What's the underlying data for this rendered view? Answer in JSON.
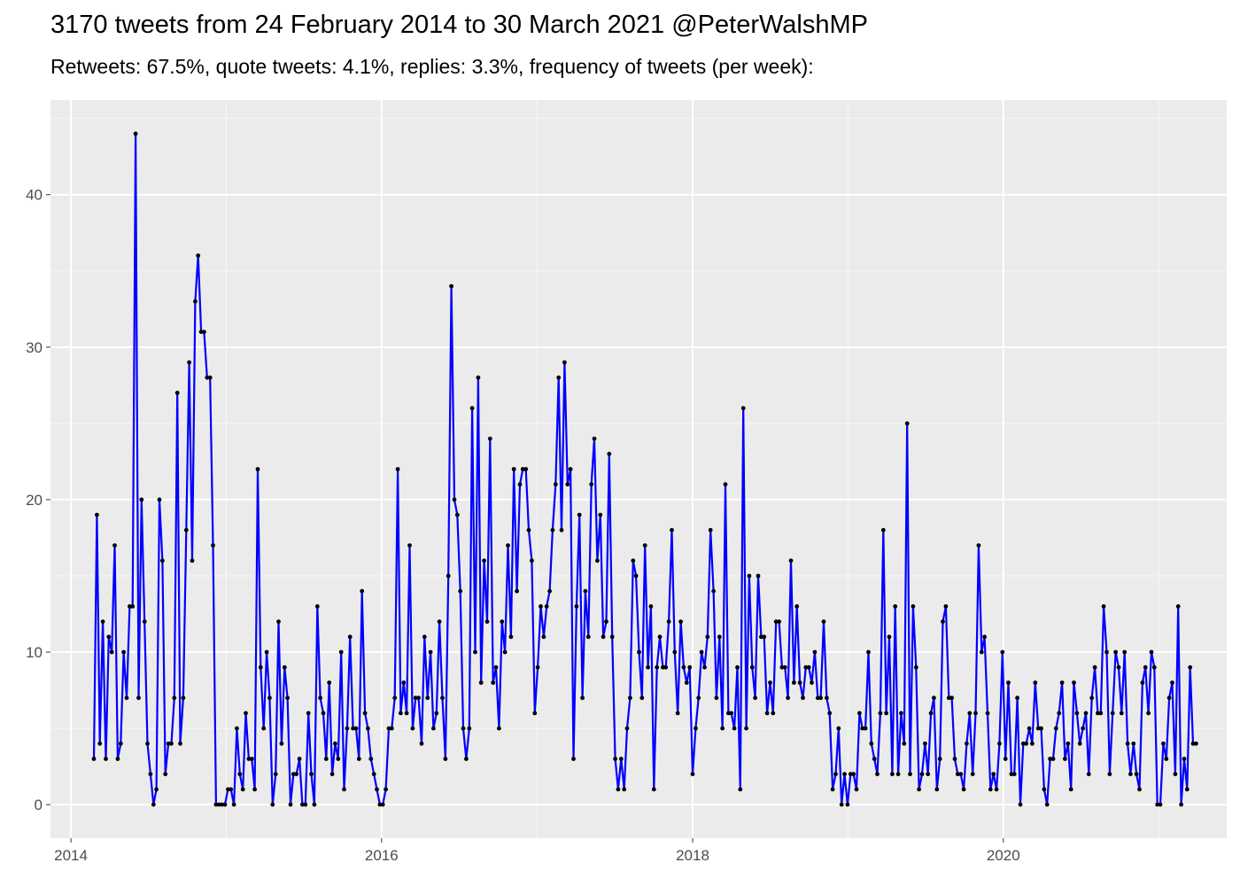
{
  "title": "3170 tweets from 24 February 2014 to 30 March 2021 @PeterWalshMP",
  "subtitle": "Retweets: 67.5%, quote tweets: 4.1%, replies: 3.3%, frequency of tweets (per week):",
  "chart_data": {
    "type": "line",
    "title": "3170 tweets from 24 February 2014 to 30 March 2021 @PeterWalshMP",
    "subtitle": "Retweets: 67.5%, quote tweets: 4.1%, replies: 3.3%, frequency of tweets (per week):",
    "xlabel": "",
    "ylabel": "",
    "x_range": [
      "2013-11-14",
      "2021-06-09"
    ],
    "ylim": [
      -2.2,
      46.2
    ],
    "x_ticks": [
      {
        "date": "2014-01-01",
        "label": "2014"
      },
      {
        "date": "2016-01-01",
        "label": "2016"
      },
      {
        "date": "2018-01-01",
        "label": "2018"
      },
      {
        "date": "2020-01-01",
        "label": "2020"
      }
    ],
    "y_ticks": [
      0,
      10,
      20,
      30,
      40
    ],
    "grid": true,
    "line_color": "#0000ff",
    "point_color": "#000000",
    "panel_background": "#ebebeb",
    "series": [
      {
        "x": [
          "2014-02-24",
          "2014-03-03",
          "2014-03-10",
          "2014-03-17",
          "2014-03-24",
          "2014-03-31",
          "2014-04-07",
          "2014-04-14",
          "2014-04-21",
          "2014-04-28",
          "2014-05-05",
          "2014-05-12",
          "2014-05-19",
          "2014-05-26",
          "2014-06-02",
          "2014-06-09",
          "2014-06-16",
          "2014-06-23",
          "2014-06-30",
          "2014-07-07",
          "2014-07-14",
          "2014-07-21",
          "2014-07-28",
          "2014-08-04",
          "2014-08-11",
          "2014-08-18",
          "2014-08-25",
          "2014-09-01",
          "2014-09-08",
          "2014-09-15",
          "2014-09-22",
          "2014-09-29",
          "2014-10-06",
          "2014-10-13",
          "2014-10-20",
          "2014-10-27",
          "2014-11-03",
          "2014-11-10",
          "2014-11-17",
          "2014-11-24",
          "2014-12-01",
          "2014-12-08",
          "2014-12-15",
          "2014-12-22",
          "2014-12-29",
          "2015-01-05",
          "2015-01-12",
          "2015-01-19",
          "2015-01-26",
          "2015-02-02",
          "2015-02-09",
          "2015-02-16",
          "2015-02-23",
          "2015-03-02",
          "2015-03-09",
          "2015-03-16",
          "2015-03-23",
          "2015-03-30",
          "2015-04-06",
          "2015-04-13",
          "2015-04-20",
          "2015-04-27",
          "2015-05-04",
          "2015-05-11",
          "2015-05-18",
          "2015-05-25",
          "2015-06-01",
          "2015-06-08",
          "2015-06-15",
          "2015-06-22",
          "2015-06-29",
          "2015-07-06",
          "2015-07-13",
          "2015-07-20",
          "2015-07-27",
          "2015-08-03",
          "2015-08-10",
          "2015-08-17",
          "2015-08-24",
          "2015-08-31",
          "2015-09-07",
          "2015-09-14",
          "2015-09-21",
          "2015-09-28",
          "2015-10-05",
          "2015-10-12",
          "2015-10-19",
          "2015-10-26",
          "2015-11-02",
          "2015-11-09",
          "2015-11-16",
          "2015-11-23",
          "2015-11-30",
          "2015-12-07",
          "2015-12-14",
          "2015-12-21",
          "2015-12-28",
          "2016-01-04",
          "2016-01-11",
          "2016-01-18",
          "2016-01-25",
          "2016-02-01",
          "2016-02-08",
          "2016-02-15",
          "2016-02-22",
          "2016-02-29",
          "2016-03-07",
          "2016-03-14",
          "2016-03-21",
          "2016-03-28",
          "2016-04-04",
          "2016-04-11",
          "2016-04-18",
          "2016-04-25",
          "2016-05-02",
          "2016-05-09",
          "2016-05-16",
          "2016-05-23",
          "2016-05-30",
          "2016-06-06",
          "2016-06-13",
          "2016-06-20",
          "2016-06-27",
          "2016-07-04",
          "2016-07-11",
          "2016-07-18",
          "2016-07-25",
          "2016-08-01",
          "2016-08-08",
          "2016-08-15",
          "2016-08-22",
          "2016-08-29",
          "2016-09-05",
          "2016-09-12",
          "2016-09-19",
          "2016-09-26",
          "2016-10-03",
          "2016-10-10",
          "2016-10-17",
          "2016-10-24",
          "2016-10-31",
          "2016-11-07",
          "2016-11-14",
          "2016-11-21",
          "2016-11-28",
          "2016-12-05",
          "2016-12-12",
          "2016-12-19",
          "2016-12-26",
          "2017-01-02",
          "2017-01-09",
          "2017-01-16",
          "2017-01-23",
          "2017-01-30",
          "2017-02-06",
          "2017-02-13",
          "2017-02-20",
          "2017-02-27",
          "2017-03-06",
          "2017-03-13",
          "2017-03-20",
          "2017-03-27",
          "2017-04-03",
          "2017-04-10",
          "2017-04-17",
          "2017-04-24",
          "2017-05-01",
          "2017-05-08",
          "2017-05-15",
          "2017-05-22",
          "2017-05-29",
          "2017-06-05",
          "2017-06-12",
          "2017-06-19",
          "2017-06-26",
          "2017-07-03",
          "2017-07-10",
          "2017-07-17",
          "2017-07-24",
          "2017-07-31",
          "2017-08-07",
          "2017-08-14",
          "2017-08-21",
          "2017-08-28",
          "2017-09-04",
          "2017-09-11",
          "2017-09-18",
          "2017-09-25",
          "2017-10-02",
          "2017-10-09",
          "2017-10-16",
          "2017-10-23",
          "2017-10-30",
          "2017-11-06",
          "2017-11-13",
          "2017-11-20",
          "2017-11-27",
          "2017-12-04",
          "2017-12-11",
          "2017-12-18",
          "2017-12-25",
          "2018-01-01",
          "2018-01-08",
          "2018-01-15",
          "2018-01-22",
          "2018-01-29",
          "2018-02-05",
          "2018-02-12",
          "2018-02-19",
          "2018-02-26",
          "2018-03-05",
          "2018-03-12",
          "2018-03-19",
          "2018-03-26",
          "2018-04-02",
          "2018-04-09",
          "2018-04-16",
          "2018-04-23",
          "2018-04-30",
          "2018-05-07",
          "2018-05-14",
          "2018-05-21",
          "2018-05-28",
          "2018-06-04",
          "2018-06-11",
          "2018-06-18",
          "2018-06-25",
          "2018-07-02",
          "2018-07-09",
          "2018-07-16",
          "2018-07-23",
          "2018-07-30",
          "2018-08-06",
          "2018-08-13",
          "2018-08-20",
          "2018-08-27",
          "2018-09-03",
          "2018-09-10",
          "2018-09-17",
          "2018-09-24",
          "2018-10-01",
          "2018-10-08",
          "2018-10-15",
          "2018-10-22",
          "2018-10-29",
          "2018-11-05",
          "2018-11-12",
          "2018-11-19",
          "2018-11-26",
          "2018-12-03",
          "2018-12-10",
          "2018-12-17",
          "2018-12-24",
          "2018-12-31",
          "2019-01-07",
          "2019-01-14",
          "2019-01-21",
          "2019-01-28",
          "2019-02-04",
          "2019-02-11",
          "2019-02-18",
          "2019-02-25",
          "2019-03-04",
          "2019-03-11",
          "2019-03-18",
          "2019-03-25",
          "2019-04-01",
          "2019-04-08",
          "2019-04-15",
          "2019-04-22",
          "2019-04-29",
          "2019-05-06",
          "2019-05-13",
          "2019-05-20",
          "2019-05-27",
          "2019-06-03",
          "2019-06-10",
          "2019-06-17",
          "2019-06-24",
          "2019-07-01",
          "2019-07-08",
          "2019-07-15",
          "2019-07-22",
          "2019-07-29",
          "2019-08-05",
          "2019-08-12",
          "2019-08-19",
          "2019-08-26",
          "2019-09-02",
          "2019-09-09",
          "2019-09-16",
          "2019-09-23",
          "2019-09-30",
          "2019-10-07",
          "2019-10-14",
          "2019-10-21",
          "2019-10-28",
          "2019-11-04",
          "2019-11-11",
          "2019-11-18",
          "2019-11-25",
          "2019-12-02",
          "2019-12-09",
          "2019-12-16",
          "2019-12-23",
          "2019-12-30",
          "2020-01-06",
          "2020-01-13",
          "2020-01-20",
          "2020-01-27",
          "2020-02-03",
          "2020-02-10",
          "2020-02-17",
          "2020-02-24",
          "2020-03-02",
          "2020-03-09",
          "2020-03-16",
          "2020-03-23",
          "2020-03-30",
          "2020-04-06",
          "2020-04-13",
          "2020-04-20",
          "2020-04-27",
          "2020-05-04",
          "2020-05-11",
          "2020-05-18",
          "2020-05-25",
          "2020-06-01",
          "2020-06-08",
          "2020-06-15",
          "2020-06-22",
          "2020-06-29",
          "2020-07-06",
          "2020-07-13",
          "2020-07-20",
          "2020-07-27",
          "2020-08-03",
          "2020-08-10",
          "2020-08-17",
          "2020-08-24",
          "2020-08-31",
          "2020-09-07",
          "2020-09-14",
          "2020-09-21",
          "2020-09-28",
          "2020-10-05",
          "2020-10-12",
          "2020-10-19",
          "2020-10-26",
          "2020-11-02",
          "2020-11-09",
          "2020-11-16",
          "2020-11-23",
          "2020-11-30",
          "2020-12-07",
          "2020-12-14",
          "2020-12-21",
          "2020-12-28",
          "2021-01-04",
          "2021-01-11",
          "2021-01-18",
          "2021-01-25",
          "2021-02-01",
          "2021-02-08",
          "2021-02-15",
          "2021-02-22",
          "2021-03-01",
          "2021-03-08",
          "2021-03-15",
          "2021-03-22",
          "2021-03-29"
        ],
        "values": [
          3,
          19,
          4,
          12,
          3,
          11,
          10,
          17,
          3,
          4,
          10,
          7,
          13,
          13,
          44,
          7,
          20,
          12,
          4,
          2,
          0,
          1,
          20,
          16,
          2,
          4,
          4,
          7,
          27,
          4,
          7,
          18,
          29,
          16,
          33,
          36,
          31,
          31,
          28,
          28,
          17,
          0,
          0,
          0,
          0,
          1,
          1,
          0,
          5,
          2,
          1,
          6,
          3,
          3,
          1,
          22,
          9,
          5,
          10,
          7,
          0,
          2,
          12,
          4,
          9,
          7,
          0,
          2,
          2,
          3,
          0,
          0,
          6,
          2,
          0,
          13,
          7,
          6,
          3,
          8,
          2,
          4,
          3,
          10,
          1,
          5,
          11,
          5,
          5,
          3,
          14,
          6,
          5,
          3,
          2,
          1,
          0,
          0,
          1,
          5,
          5,
          7,
          22,
          6,
          8,
          6,
          17,
          5,
          7,
          7,
          4,
          11,
          7,
          10,
          5,
          6,
          12,
          7,
          3,
          15,
          34,
          20,
          19,
          14,
          5,
          3,
          5,
          26,
          10,
          28,
          8,
          16,
          12,
          24,
          8,
          9,
          5,
          12,
          10,
          17,
          11,
          22,
          14,
          21,
          22,
          22,
          18,
          16,
          6,
          9,
          13,
          11,
          13,
          14,
          18,
          21,
          28,
          18,
          29,
          21,
          22,
          3,
          13,
          19,
          7,
          14,
          11,
          21,
          24,
          16,
          19,
          11,
          12,
          23,
          11,
          3,
          1,
          3,
          1,
          5,
          7,
          16,
          15,
          10,
          7,
          17,
          9,
          13,
          1,
          9,
          11,
          9,
          9,
          12,
          18,
          10,
          6,
          12,
          9,
          8,
          9,
          2,
          5,
          7,
          10,
          9,
          11,
          18,
          14,
          7,
          11,
          5,
          21,
          6,
          6,
          5,
          9,
          1,
          26,
          5,
          15,
          9,
          7,
          15,
          11,
          11,
          6,
          8,
          6,
          12,
          12,
          9,
          9,
          7,
          16,
          8,
          13,
          8,
          7,
          9,
          9,
          8,
          10,
          7,
          7,
          12,
          7,
          6,
          1,
          2,
          5,
          0,
          2,
          0,
          2,
          2,
          1,
          6,
          5,
          5,
          10,
          4,
          3,
          2,
          6,
          18,
          6,
          11,
          2,
          13,
          2,
          6,
          4,
          25,
          2,
          13,
          9,
          1,
          2,
          4,
          2,
          6,
          7,
          1,
          3,
          12,
          13,
          7,
          7,
          3,
          2,
          2,
          1,
          4,
          6,
          2,
          6,
          17,
          10,
          11,
          6,
          1,
          2,
          1,
          4,
          10,
          3,
          8,
          2,
          2,
          7,
          0,
          4,
          4,
          5,
          4,
          8,
          5,
          5,
          1,
          0,
          3,
          3,
          5,
          6,
          8,
          3,
          4,
          1,
          8,
          6,
          4,
          5,
          6,
          2,
          7,
          9,
          6,
          6,
          13,
          10,
          2,
          6,
          10,
          9,
          6,
          10,
          4,
          2,
          4,
          2,
          1,
          8,
          9,
          6,
          10,
          9,
          0,
          0,
          4,
          3,
          7,
          8,
          2,
          13,
          0,
          3,
          1,
          9,
          4,
          4
        ]
      }
    ]
  }
}
